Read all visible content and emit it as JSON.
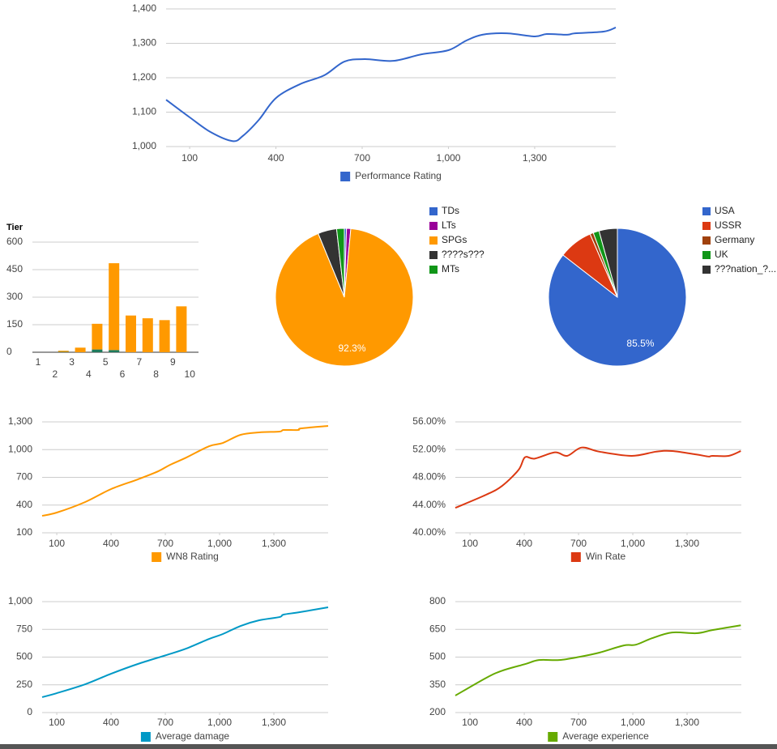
{
  "chart_data": [
    {
      "type": "line",
      "xlim": [
        18,
        1582
      ],
      "ylim": [
        1000,
        1400
      ],
      "xticks": [
        100,
        400,
        700,
        {
          "value": 1000,
          "label": "1,000"
        },
        {
          "value": 1300,
          "label": "1,300"
        }
      ],
      "yticks": [
        {
          "value": 1000,
          "label": "1,000"
        },
        {
          "value": 1100,
          "label": "1,100"
        },
        {
          "value": 1200,
          "label": "1,200"
        },
        {
          "value": 1300,
          "label": "1,300"
        },
        {
          "value": 1400,
          "label": "1,400"
        }
      ],
      "grid": true,
      "x": [
        18,
        100,
        173,
        249,
        285,
        341,
        400,
        483,
        568,
        638,
        709,
        808,
        906,
        1000,
        1062,
        1118,
        1203,
        1300,
        1342,
        1413,
        1441,
        1540,
        1582
      ],
      "series": [
        {
          "name": "Performance Rating",
          "color": "#3366cc",
          "values": [
            1136,
            1085,
            1042,
            1016,
            1031,
            1078,
            1141,
            1181,
            1207,
            1247,
            1254,
            1249,
            1268,
            1280,
            1308,
            1325,
            1329,
            1320,
            1327,
            1325,
            1329,
            1334,
            1346
          ]
        }
      ]
    },
    {
      "type": "bar",
      "title": "Tier",
      "stacked": true,
      "ylim": [
        0,
        600
      ],
      "yticks": [
        0,
        150,
        300,
        450,
        600
      ],
      "grid": true,
      "categories": [
        "1",
        "2",
        "3",
        "4",
        "5",
        "6",
        "7",
        "8",
        "9",
        "10"
      ],
      "series": [
        {
          "color": "#1e7a5c",
          "values": [
            0,
            2,
            0,
            15,
            12,
            0,
            0,
            0,
            0,
            0
          ]
        },
        {
          "color": "#ff9900",
          "values": [
            0,
            6,
            25,
            140,
            473,
            200,
            185,
            175,
            250,
            0
          ]
        }
      ]
    },
    {
      "type": "pie",
      "categories": [
        "TDs",
        "LTs",
        "SPGs",
        "????s???",
        "MTs"
      ],
      "colors": [
        "#3366cc",
        "#990099",
        "#ff9900",
        "#333333",
        "#109618"
      ],
      "values": [
        0.5,
        1.0,
        92.3,
        4.4,
        1.8
      ],
      "value_labels": [
        null,
        null,
        "92.3%",
        null,
        null
      ]
    },
    {
      "type": "pie",
      "categories": [
        "USA",
        "USSR",
        "Germany",
        "UK",
        "???nation_?..."
      ],
      "colors": [
        "#3366cc",
        "#dc3912",
        "#a0410d",
        "#109618",
        "#333333"
      ],
      "values": [
        85.5,
        8.0,
        0.8,
        1.4,
        4.3
      ],
      "value_labels": [
        "85.5%",
        null,
        null,
        null,
        null
      ]
    },
    {
      "type": "line",
      "xlim": [
        19,
        1600
      ],
      "ylim": [
        100,
        1300
      ],
      "xticks": [
        100,
        400,
        700,
        {
          "value": 1000,
          "label": "1,000"
        },
        {
          "value": 1300,
          "label": "1,300"
        }
      ],
      "yticks": [
        100,
        400,
        700,
        {
          "value": 1000,
          "label": "1,000"
        },
        {
          "value": 1300,
          "label": "1,300"
        }
      ],
      "grid": true,
      "x": [
        19,
        100,
        257,
        400,
        548,
        660,
        727,
        816,
        942,
        1018,
        1116,
        1219,
        1331,
        1354,
        1434,
        1452,
        1600
      ],
      "series": [
        {
          "name": "WN8 Rating",
          "color": "#ff9900",
          "values": [
            284,
            319,
            433,
            573,
            678,
            765,
            836,
            914,
            1037,
            1072,
            1160,
            1186,
            1195,
            1212,
            1212,
            1230,
            1256
          ]
        }
      ]
    },
    {
      "type": "line",
      "xlim": [
        19,
        1600
      ],
      "ylim": [
        40,
        56
      ],
      "xticks": [
        100,
        400,
        700,
        {
          "value": 1000,
          "label": "1,000"
        },
        {
          "value": 1300,
          "label": "1,300"
        }
      ],
      "yticks": [
        {
          "value": 40,
          "label": "40.00%"
        },
        {
          "value": 44,
          "label": "44.00%"
        },
        {
          "value": 48,
          "label": "48.00%"
        },
        {
          "value": 52,
          "label": "52.00%"
        },
        {
          "value": 56,
          "label": "56.00%"
        }
      ],
      "grid": true,
      "x": [
        19,
        190,
        279,
        369,
        404,
        458,
        570,
        637,
        717,
        815,
        994,
        1128,
        1217,
        1351,
        1418,
        1440,
        1530,
        1597
      ],
      "series": [
        {
          "name": "Win Rate",
          "color": "#dc3912",
          "values": [
            43.6,
            45.5,
            46.8,
            49.1,
            50.9,
            50.7,
            51.6,
            51.1,
            52.3,
            51.7,
            51.1,
            51.7,
            51.8,
            51.3,
            51.0,
            51.1,
            51.1,
            51.8
          ]
        }
      ]
    },
    {
      "type": "line",
      "xlim": [
        19,
        1600
      ],
      "ylim": [
        0,
        1000
      ],
      "xticks": [
        100,
        400,
        700,
        {
          "value": 1000,
          "label": "1,000"
        },
        {
          "value": 1300,
          "label": "1,300"
        }
      ],
      "yticks": [
        0,
        250,
        500,
        750,
        {
          "value": 1000,
          "label": "1,000"
        }
      ],
      "grid": true,
      "x": [
        19,
        100,
        257,
        400,
        548,
        705,
        816,
        942,
        1018,
        1116,
        1219,
        1331,
        1354,
        1443,
        1600
      ],
      "series": [
        {
          "name": "Average damage",
          "color": "#0099c6",
          "values": [
            139,
            175,
            255,
            350,
            438,
            518,
            577,
            664,
            708,
            781,
            832,
            861,
            883,
            905,
            949
          ]
        }
      ]
    },
    {
      "type": "line",
      "xlim": [
        19,
        1600
      ],
      "ylim": [
        200,
        800
      ],
      "xticks": [
        100,
        400,
        700,
        {
          "value": 1000,
          "label": "1,000"
        },
        {
          "value": 1300,
          "label": "1,300"
        }
      ],
      "yticks": [
        200,
        350,
        500,
        650,
        800
      ],
      "grid": true,
      "x": [
        19,
        190,
        279,
        404,
        481,
        593,
        704,
        815,
        950,
        1017,
        1106,
        1217,
        1351,
        1440,
        1597
      ],
      "series": [
        {
          "name": "Average experience",
          "color": "#66aa00",
          "values": [
            292,
            388,
            427,
            462,
            484,
            484,
            501,
            524,
            563,
            567,
            602,
            633,
            629,
            646,
            672
          ]
        }
      ]
    }
  ]
}
